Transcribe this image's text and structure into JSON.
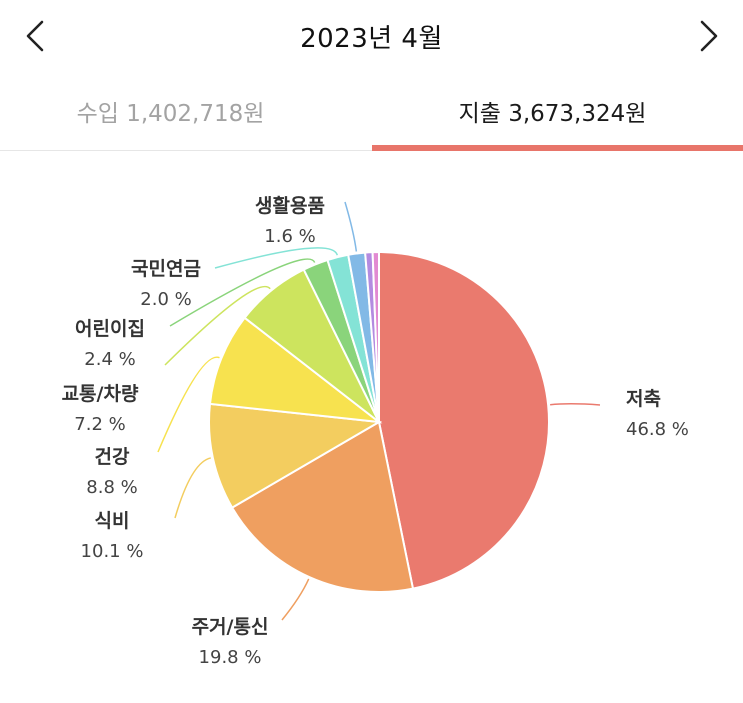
{
  "header": {
    "title": "2023년 4월",
    "prev_icon": "chevron-left-icon",
    "next_icon": "chevron-right-icon"
  },
  "tabs": {
    "income": {
      "label": "수입 1,402,718원",
      "selected": false
    },
    "expense": {
      "label": "지출 3,673,324원",
      "selected": true
    }
  },
  "colors": {
    "accent": "#e8756a"
  },
  "chart_data": {
    "type": "pie",
    "title": "",
    "slices": [
      {
        "name": "저축",
        "value": 46.8,
        "label": "46.8 %",
        "color": "#ea7a6e"
      },
      {
        "name": "주거/통신",
        "value": 19.8,
        "label": "19.8 %",
        "color": "#ef9f60"
      },
      {
        "name": "식비",
        "value": 10.1,
        "label": "10.1 %",
        "color": "#f3cd5f"
      },
      {
        "name": "건강",
        "value": 8.8,
        "label": "8.8 %",
        "color": "#f7e24f"
      },
      {
        "name": "교통/차량",
        "value": 7.2,
        "label": "7.2 %",
        "color": "#cde45e"
      },
      {
        "name": "어린이집",
        "value": 2.4,
        "label": "2.4 %",
        "color": "#8ad47b"
      },
      {
        "name": "국민연금",
        "value": 2.0,
        "label": "2.0 %",
        "color": "#84e3d6"
      },
      {
        "name": "생활용품",
        "value": 1.6,
        "label": "1.6 %",
        "color": "#82b9e6"
      },
      {
        "name": "",
        "value": 0.7,
        "label": "",
        "color": "#b38be0"
      },
      {
        "name": "",
        "value": 0.6,
        "label": "",
        "color": "#e28ad2"
      }
    ]
  }
}
